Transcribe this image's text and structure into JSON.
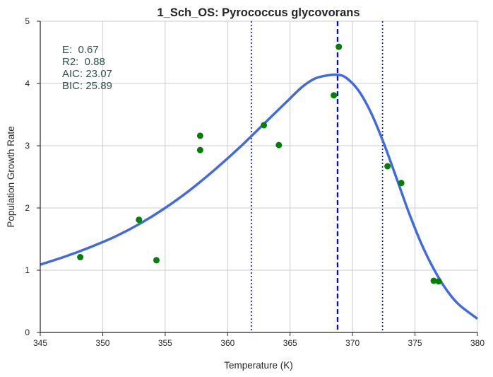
{
  "chart_data": {
    "type": "scatter",
    "title": "1_Sch_OS: Pyrococcus glycovorans",
    "xlabel": "Temperature (K)",
    "ylabel": "Population Growth Rate",
    "xlim": [
      345,
      380
    ],
    "ylim": [
      0,
      5
    ],
    "xticks": [
      345,
      350,
      355,
      360,
      365,
      370,
      375,
      380
    ],
    "yticks": [
      0,
      1,
      2,
      3,
      4,
      5
    ],
    "grid": true,
    "annotations": [
      "E:  0.67",
      "R2:  0.88",
      "AIC: 23.07",
      "BIC: 25.89"
    ],
    "colors": {
      "fit": "#4169e1",
      "points": "#008000",
      "lines": "#0000ff",
      "grid": "#cccccc"
    },
    "points": {
      "x": [
        348.2,
        352.9,
        354.3,
        357.8,
        357.8,
        362.9,
        364.1,
        368.5,
        368.9,
        372.8,
        373.9,
        376.5,
        376.9
      ],
      "y": [
        1.21,
        1.81,
        1.16,
        3.16,
        2.93,
        3.33,
        3.01,
        3.81,
        4.59,
        2.67,
        2.4,
        0.83,
        0.82
      ]
    },
    "fit_curve": {
      "x": [
        345,
        347,
        349,
        351,
        353,
        355,
        357,
        359,
        361,
        363,
        365,
        366,
        367,
        368,
        368.8,
        369.5,
        370.5,
        371.5,
        372.5,
        373.5,
        374.5,
        375.5,
        376.5,
        377.5,
        378.5,
        380
      ],
      "y": [
        1.09,
        1.22,
        1.37,
        1.54,
        1.75,
        2.0,
        2.29,
        2.62,
        2.98,
        3.37,
        3.76,
        3.95,
        4.08,
        4.13,
        4.14,
        4.09,
        3.88,
        3.52,
        3.04,
        2.49,
        1.93,
        1.43,
        1.02,
        0.69,
        0.45,
        0.22
      ]
    },
    "vertical_lines": [
      {
        "x": 361.9,
        "style": "dotted"
      },
      {
        "x": 368.8,
        "style": "dashed"
      },
      {
        "x": 372.4,
        "style": "dotted"
      }
    ]
  }
}
